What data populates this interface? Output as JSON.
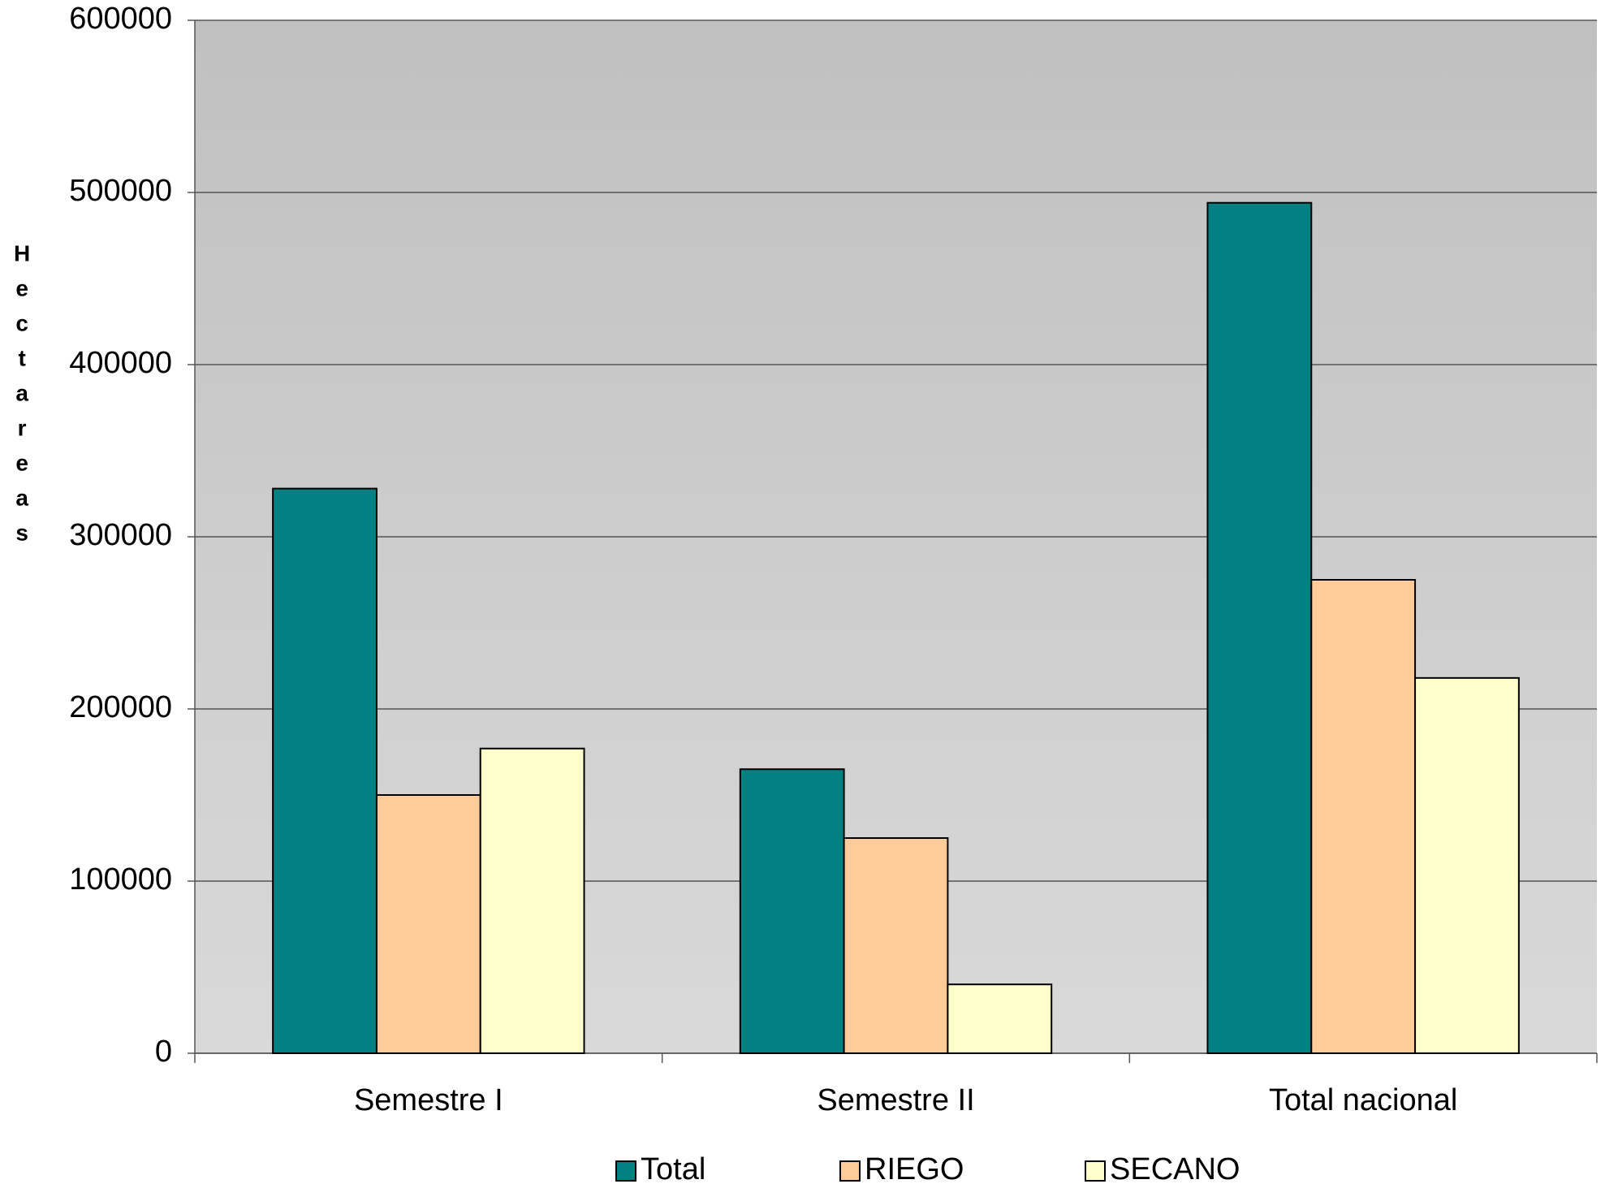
{
  "chart_data": {
    "type": "bar",
    "y_label": "Hectareas",
    "categories": [
      "Semestre I",
      "Semestre II",
      "Total nacional"
    ],
    "series": [
      {
        "name": "Total",
        "color": "#008080",
        "values": [
          328000,
          165000,
          494000
        ]
      },
      {
        "name": "RIEGO",
        "color": "#ffcc99",
        "values": [
          150000,
          125000,
          275000
        ]
      },
      {
        "name": "SECANO",
        "color": "#ffffcc",
        "values": [
          177000,
          40000,
          218000
        ]
      }
    ],
    "ylim": [
      0,
      600000
    ],
    "yticks": [
      0,
      100000,
      200000,
      300000,
      400000,
      500000,
      600000
    ],
    "grid": true,
    "legend": "bottom"
  }
}
